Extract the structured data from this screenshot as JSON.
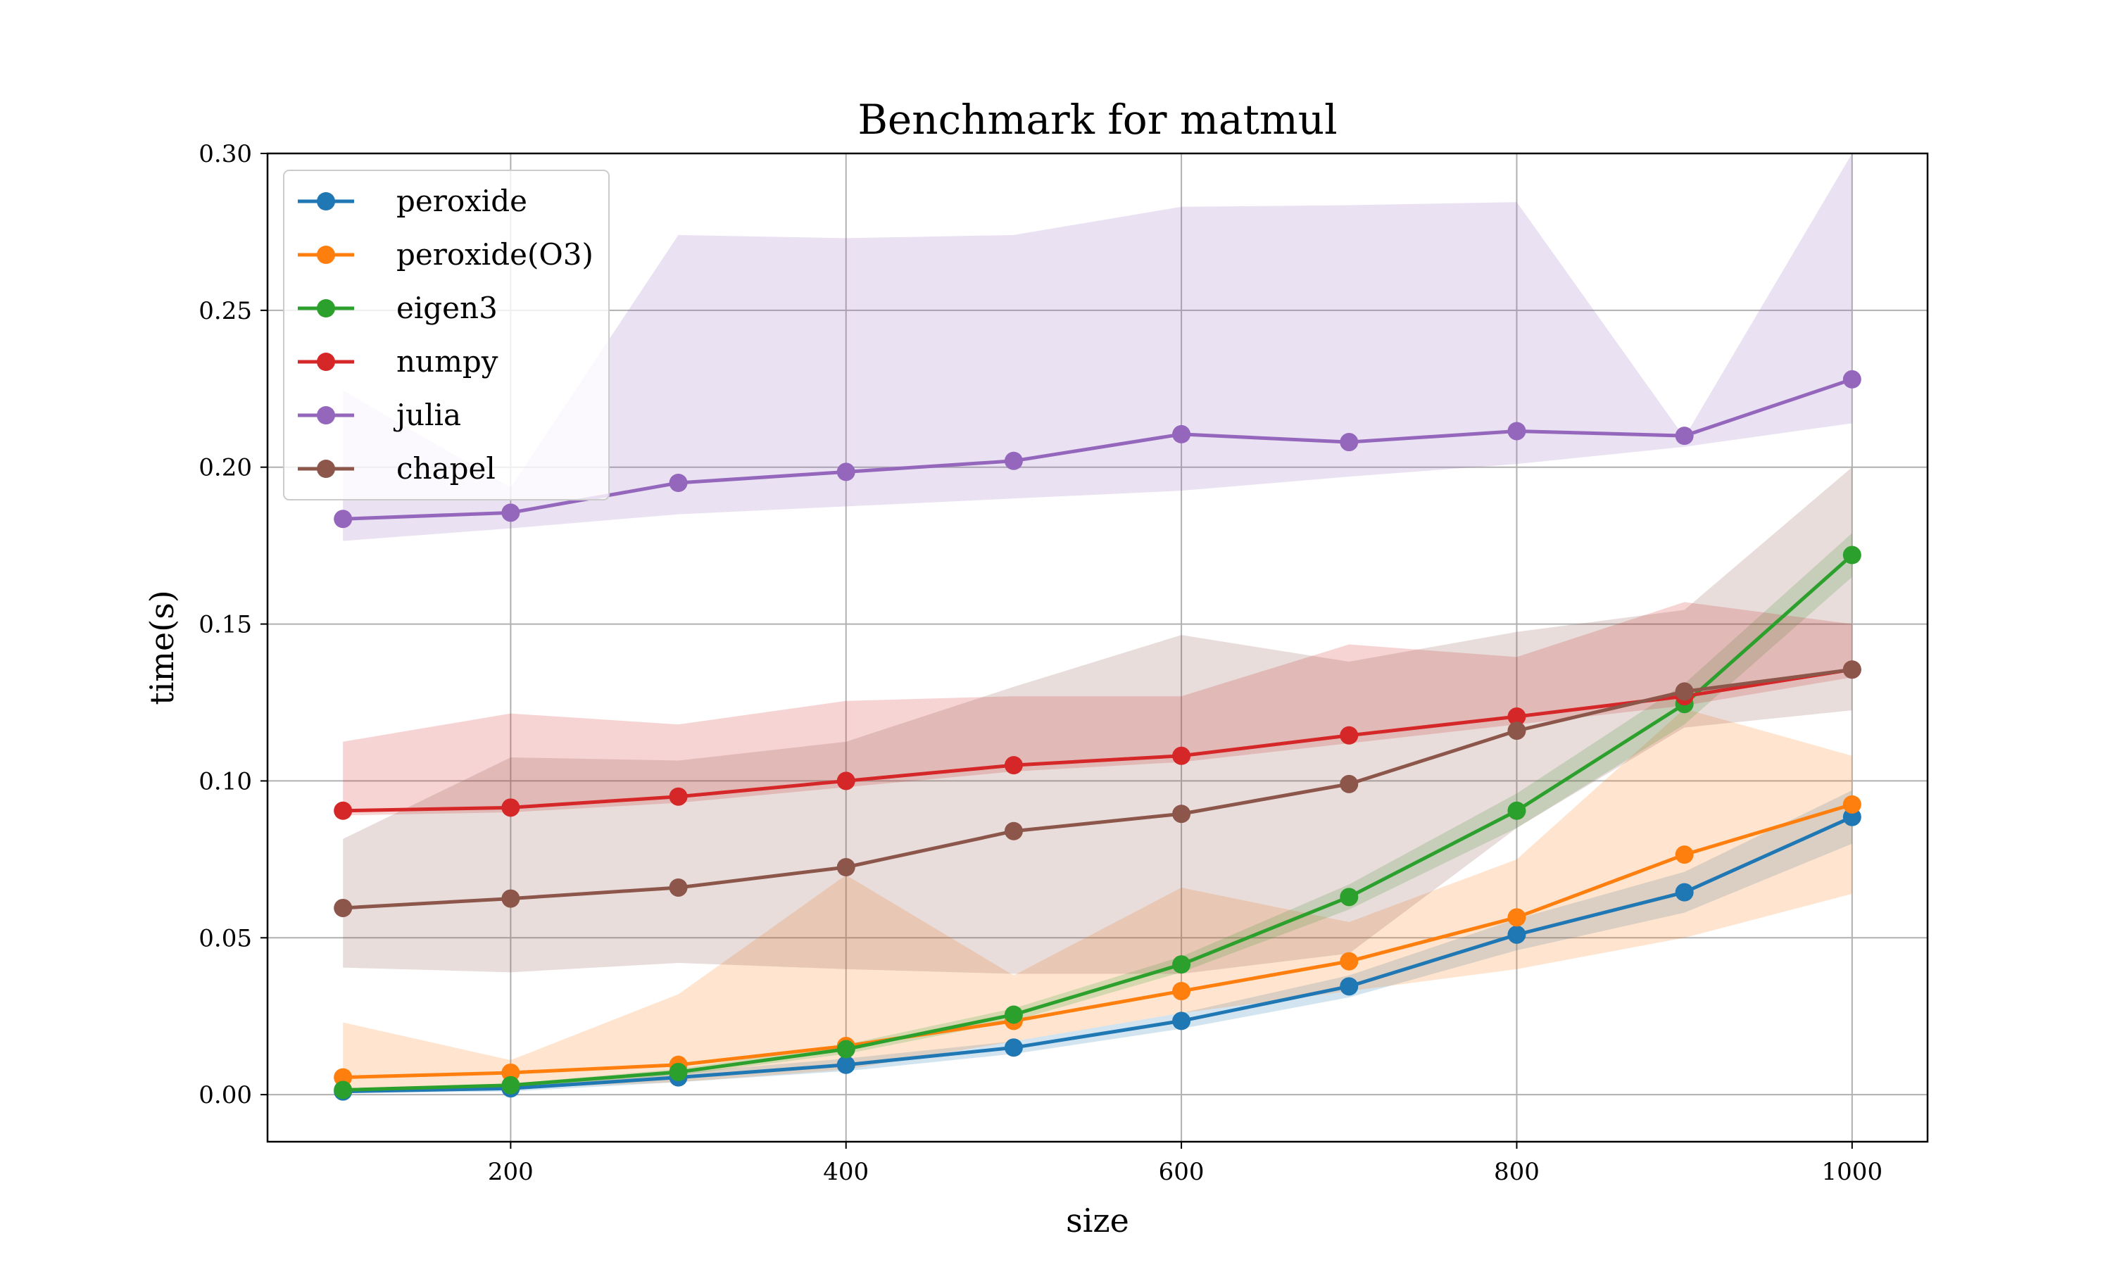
{
  "chart_data": {
    "type": "line",
    "title": "Benchmark for matmul",
    "xlabel": "size",
    "ylabel": "time(s)",
    "xlim": [
      55,
      1045
    ],
    "ylim": [
      -0.015,
      0.3
    ],
    "x_ticks": [
      200,
      400,
      600,
      800,
      1000
    ],
    "x_tick_labels": [
      "200",
      "400",
      "600",
      "800",
      "1000"
    ],
    "y_ticks": [
      0.0,
      0.05,
      0.1,
      0.15,
      0.2,
      0.25,
      0.3
    ],
    "y_tick_labels": [
      "0.00",
      "0.05",
      "0.10",
      "0.15",
      "0.20",
      "0.25",
      "0.30"
    ],
    "grid": true,
    "legend_position": "top-left",
    "x": [
      100,
      200,
      300,
      400,
      500,
      600,
      700,
      800,
      900,
      1000
    ],
    "series": [
      {
        "name": "peroxide",
        "color": "#1f77b4",
        "values": [
          0.001,
          0.002,
          0.0055,
          0.0095,
          0.015,
          0.0235,
          0.0345,
          0.051,
          0.0645,
          0.0885
        ],
        "band_low": [
          0.0005,
          0.001,
          0.004,
          0.0075,
          0.013,
          0.021,
          0.031,
          0.046,
          0.058,
          0.08
        ],
        "band_high": [
          0.002,
          0.0035,
          0.007,
          0.0115,
          0.017,
          0.026,
          0.038,
          0.056,
          0.071,
          0.097
        ]
      },
      {
        "name": "peroxide(O3)",
        "color": "#ff7f0e",
        "values": [
          0.0055,
          0.007,
          0.0095,
          0.0155,
          0.0235,
          0.033,
          0.0425,
          0.0565,
          0.0765,
          0.0925
        ],
        "band_low": [
          0.001,
          0.002,
          0.004,
          0.008,
          0.017,
          0.026,
          0.033,
          0.04,
          0.05,
          0.064
        ],
        "band_high": [
          0.023,
          0.011,
          0.032,
          0.07,
          0.038,
          0.066,
          0.055,
          0.075,
          0.123,
          0.108
        ]
      },
      {
        "name": "eigen3",
        "color": "#2ca02c",
        "values": [
          0.0015,
          0.003,
          0.0072,
          0.0145,
          0.0255,
          0.0415,
          0.063,
          0.0905,
          0.1245,
          0.172
        ],
        "band_low": [
          0.001,
          0.0025,
          0.0062,
          0.013,
          0.0235,
          0.039,
          0.059,
          0.085,
          0.118,
          0.165
        ],
        "band_high": [
          0.002,
          0.0035,
          0.0082,
          0.016,
          0.0275,
          0.044,
          0.067,
          0.096,
          0.131,
          0.179
        ]
      },
      {
        "name": "numpy",
        "color": "#d62728",
        "values": [
          0.0905,
          0.0915,
          0.095,
          0.1,
          0.105,
          0.108,
          0.1145,
          0.1205,
          0.127,
          0.1355
        ],
        "band_low": [
          0.089,
          0.09,
          0.093,
          0.098,
          0.103,
          0.106,
          0.112,
          0.118,
          0.124,
          0.133
        ],
        "band_high": [
          0.1125,
          0.1215,
          0.118,
          0.1255,
          0.127,
          0.127,
          0.1435,
          0.1395,
          0.157,
          0.15
        ]
      },
      {
        "name": "julia",
        "color": "#9467bd",
        "values": [
          0.1835,
          0.1855,
          0.195,
          0.1985,
          0.202,
          0.2105,
          0.208,
          0.2115,
          0.21,
          0.228
        ],
        "band_low": [
          0.1765,
          0.1805,
          0.185,
          0.1875,
          0.19,
          0.1925,
          0.197,
          0.201,
          0.2065,
          0.214
        ],
        "band_high": [
          0.2245,
          0.1935,
          0.274,
          0.273,
          0.274,
          0.283,
          0.2835,
          0.2845,
          0.2095,
          0.3
        ]
      },
      {
        "name": "chapel",
        "color": "#8c564b",
        "values": [
          0.0595,
          0.0625,
          0.066,
          0.0725,
          0.084,
          0.0895,
          0.099,
          0.116,
          0.1285,
          0.1355
        ],
        "band_low": [
          0.0405,
          0.039,
          0.042,
          0.04,
          0.0385,
          0.0385,
          0.045,
          0.085,
          0.117,
          0.1225
        ],
        "band_high": [
          0.0815,
          0.1075,
          0.1065,
          0.1125,
          0.13,
          0.1465,
          0.138,
          0.1475,
          0.1545,
          0.2
        ]
      }
    ]
  }
}
